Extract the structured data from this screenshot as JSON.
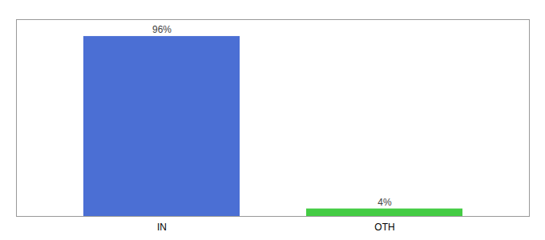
{
  "chart_data": {
    "type": "bar",
    "categories": [
      "IN",
      "OTH"
    ],
    "values": [
      96,
      4
    ],
    "value_labels": [
      "96%",
      "4%"
    ],
    "colors": [
      "#4b6fd4",
      "#44cc44"
    ],
    "ylim": [
      0,
      105
    ],
    "data_labels": true,
    "tick_labels": "x"
  }
}
